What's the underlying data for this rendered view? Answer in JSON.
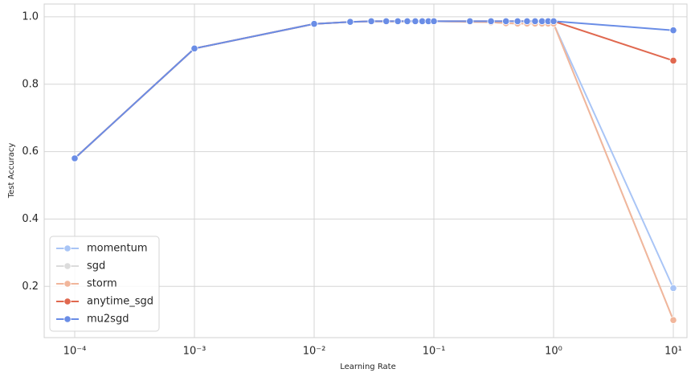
{
  "chart_data": {
    "type": "line",
    "x_label": "Learning Rate",
    "y_label": "Test Accuracy",
    "xscale": "log",
    "grid": true,
    "legend": "lower left",
    "x": [
      0.0001,
      0.001,
      0.01,
      0.02,
      0.03,
      0.04,
      0.05,
      0.06,
      0.07,
      0.08,
      0.09,
      0.1,
      0.2,
      0.3,
      0.4,
      0.5,
      0.6,
      0.7,
      0.8,
      0.9,
      1,
      10
    ],
    "xlim": [
      5.56e-05,
      13
    ],
    "xticks": [
      {
        "value": 0.0001,
        "label": "10⁻⁴"
      },
      {
        "value": 0.001,
        "label": "10⁻³"
      },
      {
        "value": 0.01,
        "label": "10⁻²"
      },
      {
        "value": 0.1,
        "label": "10⁻¹"
      },
      {
        "value": 1,
        "label": "10⁰"
      },
      {
        "value": 10,
        "label": "10¹"
      }
    ],
    "ylim": [
      0.048,
      1.038
    ],
    "yticks": [
      0.2,
      0.4,
      0.6,
      0.8,
      {
        "value": 1,
        "label": "1.0"
      }
    ],
    "series": [
      {
        "name": "momentum",
        "color": "#a9c5f6",
        "values": [
          0.58,
          0.906,
          0.979,
          0.985,
          0.986,
          0.986,
          0.986,
          0.986,
          0.987,
          0.987,
          0.987,
          0.987,
          0.985,
          0.984,
          0.981,
          0.98,
          0.98,
          0.98,
          0.98,
          0.98,
          0.98,
          0.195
        ]
      },
      {
        "name": "sgd",
        "color": "#dcdcdc",
        "values": [
          0.58,
          0.906,
          0.979,
          0.985,
          0.986,
          0.986,
          0.986,
          0.986,
          0.987,
          0.987,
          0.987,
          0.987,
          0.985,
          0.984,
          0.981,
          0.98,
          0.98,
          0.98,
          0.98,
          0.98,
          0.98,
          0.1
        ]
      },
      {
        "name": "storm",
        "color": "#f1b69b",
        "values": [
          0.58,
          0.906,
          0.979,
          0.985,
          0.986,
          0.986,
          0.986,
          0.986,
          0.987,
          0.987,
          0.987,
          0.987,
          0.985,
          0.984,
          0.981,
          0.98,
          0.98,
          0.98,
          0.98,
          0.98,
          0.98,
          0.1
        ]
      },
      {
        "name": "anytime_sgd",
        "color": "#e0684f",
        "values": [
          0.58,
          0.906,
          0.979,
          0.985,
          0.987,
          0.987,
          0.987,
          0.987,
          0.987,
          0.987,
          0.987,
          0.987,
          0.987,
          0.987,
          0.987,
          0.987,
          0.987,
          0.987,
          0.987,
          0.987,
          0.987,
          0.87
        ]
      },
      {
        "name": "mu2sgd",
        "color": "#6a8de6",
        "values": [
          0.58,
          0.906,
          0.979,
          0.985,
          0.987,
          0.987,
          0.987,
          0.987,
          0.987,
          0.987,
          0.987,
          0.987,
          0.987,
          0.987,
          0.987,
          0.987,
          0.987,
          0.987,
          0.987,
          0.987,
          0.987,
          0.96
        ]
      }
    ]
  }
}
